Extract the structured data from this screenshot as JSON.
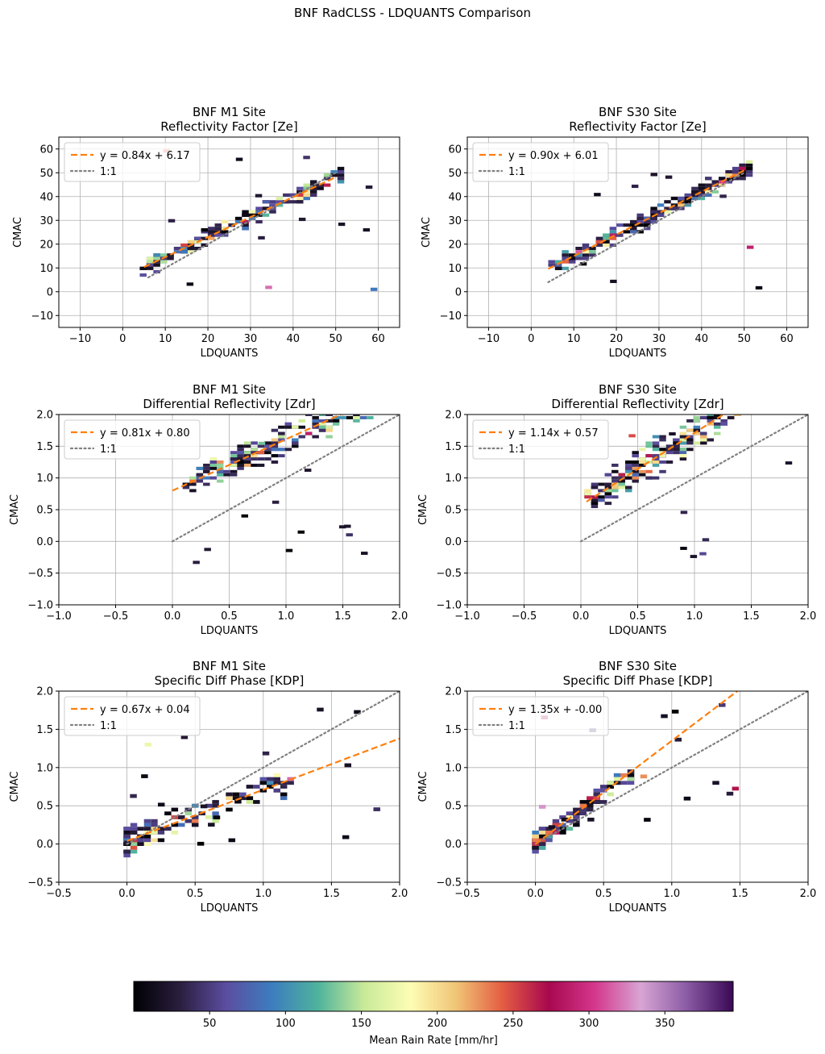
{
  "figure": {
    "title": "BNF RadCLSS - LDQUANTS Comparison",
    "colorbar": {
      "label": "Mean Rain Rate [mm/hr]",
      "range": [
        0,
        395
      ],
      "ticks": [
        50,
        100,
        150,
        200,
        250,
        300,
        350
      ],
      "colormap": "spectral-rainbow",
      "stops": [
        "#000004",
        "#2a1e3e",
        "#5c4da0",
        "#3c7dbf",
        "#4fb39c",
        "#c9ea99",
        "#fdfdb4",
        "#f0c476",
        "#e45c42",
        "#a8084e",
        "#d4378c",
        "#d8a5d3",
        "#8a5aa5",
        "#3a0855"
      ]
    }
  },
  "chart_data": [
    {
      "type": "heatmap",
      "title": "BNF M1 Site\nReflectivity Factor [Ze]",
      "title_lines": [
        "BNF M1 Site",
        "Reflectivity Factor [Ze]"
      ],
      "xlabel": "LDQUANTS",
      "ylabel": "CMAC",
      "xlim": [
        -15,
        65
      ],
      "ylim": [
        -15,
        65
      ],
      "xticks": [
        -10,
        0,
        10,
        20,
        30,
        40,
        50,
        60
      ],
      "yticks": [
        -10,
        0,
        10,
        20,
        30,
        40,
        50,
        60
      ],
      "tick_labels": [
        "−10",
        "0",
        "10",
        "20",
        "30",
        "40",
        "50",
        "60"
      ],
      "grid": true,
      "legend_loc": "upper left",
      "fit": {
        "slope": 0.84,
        "intercept": 6.17,
        "x_range": [
          5,
          50
        ],
        "label": "y = 0.84x + 6.17"
      },
      "one_to_one": {
        "x_range": [
          6,
          50
        ],
        "label": "1:1"
      },
      "cells": {
        "x_range": [
          5,
          52
        ],
        "bin": 1.6,
        "spread": 4.5,
        "seed": 11,
        "count": 190,
        "nx_bin": 1.6,
        "ny_bin": 1.4,
        "outliers": 14
      },
      "colors_note": "mostly dark; blue/teal/yellow/orange/red cells near fit line"
    },
    {
      "type": "heatmap",
      "title": "BNF S30 Site\nReflectivity Factor [Ze]",
      "title_lines": [
        "BNF S30 Site",
        "Reflectivity Factor [Ze]"
      ],
      "xlabel": "LDQUANTS",
      "ylabel": "CMAC",
      "xlim": [
        -15,
        65
      ],
      "ylim": [
        -15,
        65
      ],
      "xticks": [
        -10,
        0,
        10,
        20,
        30,
        40,
        50,
        60
      ],
      "yticks": [
        -10,
        0,
        10,
        20,
        30,
        40,
        50,
        60
      ],
      "tick_labels": [
        "−10",
        "0",
        "10",
        "20",
        "30",
        "40",
        "50",
        "60"
      ],
      "grid": true,
      "legend_loc": "upper left",
      "fit": {
        "slope": 0.9,
        "intercept": 6.01,
        "x_range": [
          4,
          50
        ],
        "label": "y = 0.90x + 6.01"
      },
      "one_to_one": {
        "x_range": [
          4,
          50
        ],
        "label": "1:1"
      },
      "cells": {
        "x_range": [
          5,
          52
        ],
        "bin": 1.6,
        "spread": 4.5,
        "seed": 23,
        "count": 220,
        "nx_bin": 1.6,
        "ny_bin": 1.4,
        "outliers": 10
      }
    },
    {
      "type": "heatmap",
      "title": "BNF M1 Site\nDifferential Reflectivity [Zdr]",
      "title_lines": [
        "BNF M1 Site",
        "Differential Reflectivity [Zdr]"
      ],
      "xlabel": "LDQUANTS",
      "ylabel": "CMAC",
      "xlim": [
        -1.0,
        2.0
      ],
      "ylim": [
        -1.0,
        2.0
      ],
      "xticks": [
        -1.0,
        -0.5,
        0.0,
        0.5,
        1.0,
        1.5,
        2.0
      ],
      "yticks": [
        -1.0,
        -0.5,
        0.0,
        0.5,
        1.0,
        1.5,
        2.0
      ],
      "tick_labels": [
        "−1.0",
        "−0.5",
        "0.0",
        "0.5",
        "1.0",
        "1.5",
        "2.0"
      ],
      "grid": true,
      "legend_loc": "upper left",
      "fit": {
        "slope": 0.81,
        "intercept": 0.8,
        "x_range": [
          0.0,
          1.5
        ],
        "label": "y = 0.81x + 0.80"
      },
      "one_to_one": {
        "x_range": [
          0.0,
          2.0
        ],
        "label": "1:1"
      },
      "cells": {
        "x_range": [
          0.1,
          1.9
        ],
        "bin": 0.06,
        "spread": 0.35,
        "seed": 37,
        "count": 230,
        "nx_bin": 0.06,
        "ny_bin": 0.05,
        "outliers": 12
      }
    },
    {
      "type": "heatmap",
      "title": "BNF S30 Site\nDifferential Reflectivity [Zdr]",
      "title_lines": [
        "BNF S30 Site",
        "Differential Reflectivity [Zdr]"
      ],
      "xlabel": "LDQUANTS",
      "ylabel": "CMAC",
      "xlim": [
        -1.0,
        2.0
      ],
      "ylim": [
        -1.0,
        2.0
      ],
      "xticks": [
        -1.0,
        -0.5,
        0.0,
        0.5,
        1.0,
        1.5,
        2.0
      ],
      "yticks": [
        -1.0,
        -0.5,
        0.0,
        0.5,
        1.0,
        1.5,
        2.0
      ],
      "tick_labels": [
        "−1.0",
        "−0.5",
        "0.0",
        "0.5",
        "1.0",
        "1.5",
        "2.0"
      ],
      "grid": true,
      "legend_loc": "upper left",
      "fit": {
        "slope": 1.14,
        "intercept": 0.57,
        "x_range": [
          0.05,
          1.25
        ],
        "label": "y = 1.14x + 0.57"
      },
      "one_to_one": {
        "x_range": [
          0.0,
          2.0
        ],
        "label": "1:1"
      },
      "cells": {
        "x_range": [
          0.05,
          1.5
        ],
        "bin": 0.06,
        "spread": 0.4,
        "seed": 51,
        "count": 230,
        "nx_bin": 0.06,
        "ny_bin": 0.05,
        "outliers": 8
      }
    },
    {
      "type": "heatmap",
      "title": "BNF M1 Site\nSpecific Diff Phase [KDP]",
      "title_lines": [
        "BNF M1 Site",
        "Specific Diff Phase [KDP]"
      ],
      "xlabel": "LDQUANTS",
      "ylabel": "CMAC",
      "xlim": [
        -0.5,
        2.0
      ],
      "ylim": [
        -0.5,
        2.0
      ],
      "xticks": [
        -0.5,
        0.0,
        0.5,
        1.0,
        1.5,
        2.0
      ],
      "yticks": [
        -0.5,
        0.0,
        0.5,
        1.0,
        1.5,
        2.0
      ],
      "tick_labels": [
        "−0.5",
        "0.0",
        "0.5",
        "1.0",
        "1.5",
        "2.0"
      ],
      "grid": true,
      "legend_loc": "upper left",
      "fit": {
        "slope": 0.67,
        "intercept": 0.04,
        "x_range": [
          0.0,
          2.0
        ],
        "label": "y = 0.67x + 0.04"
      },
      "one_to_one": {
        "x_range": [
          0.0,
          2.0
        ],
        "label": "1:1"
      },
      "cells": {
        "x_range": [
          0.0,
          1.2
        ],
        "bin": 0.05,
        "spread": 0.25,
        "seed": 67,
        "count": 140,
        "nx_bin": 0.05,
        "ny_bin": 0.05,
        "outliers": 18
      }
    },
    {
      "type": "heatmap",
      "title": "BNF S30 Site\nSpecific Diff Phase [KDP]",
      "title_lines": [
        "BNF S30 Site",
        "Specific Diff Phase [KDP]"
      ],
      "xlabel": "LDQUANTS",
      "ylabel": "CMAC",
      "xlim": [
        -0.5,
        2.0
      ],
      "ylim": [
        -0.5,
        2.0
      ],
      "xticks": [
        -0.5,
        0.0,
        0.5,
        1.0,
        1.5,
        2.0
      ],
      "yticks": [
        -0.5,
        0.0,
        0.5,
        1.0,
        1.5,
        2.0
      ],
      "tick_labels": [
        "−0.5",
        "0.0",
        "0.5",
        "1.0",
        "1.5",
        "2.0"
      ],
      "grid": true,
      "legend_loc": "upper left",
      "fit": {
        "slope": 1.35,
        "intercept": 0.0,
        "x_range": [
          0.0,
          1.48
        ],
        "label": "y = 1.35x + -0.00"
      },
      "one_to_one": {
        "x_range": [
          0.0,
          2.0
        ],
        "label": "1:1"
      },
      "cells": {
        "x_range": [
          0.0,
          0.7
        ],
        "bin": 0.05,
        "spread": 0.18,
        "seed": 79,
        "count": 130,
        "nx_bin": 0.05,
        "ny_bin": 0.05,
        "outliers": 16
      }
    }
  ]
}
